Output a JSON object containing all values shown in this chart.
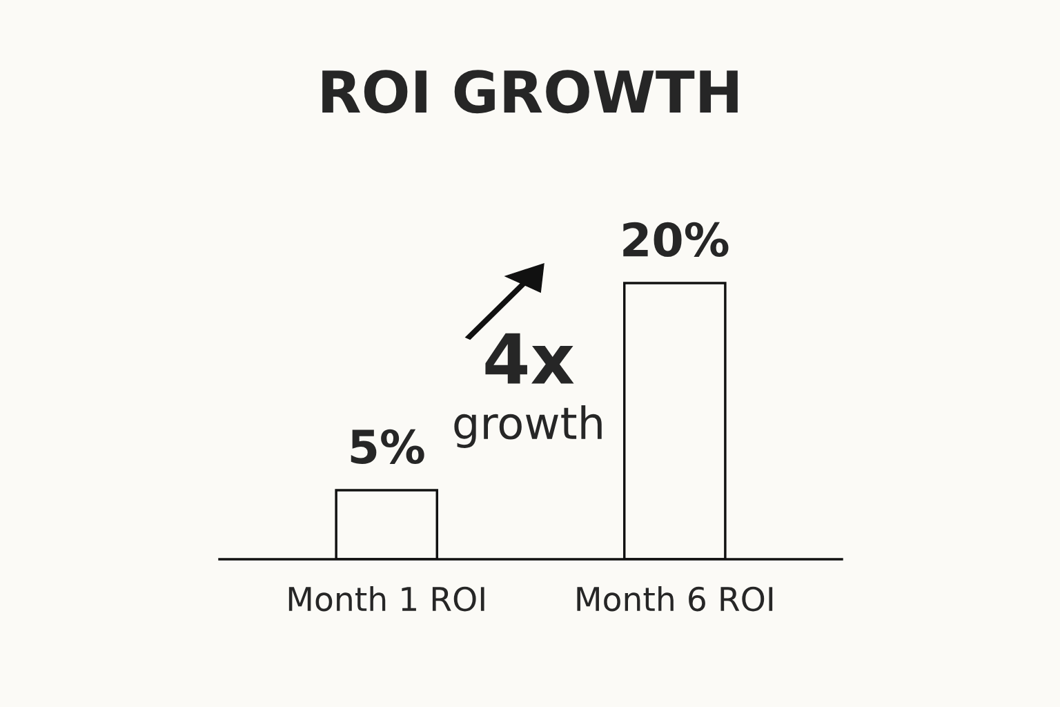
{
  "chart_data": {
    "type": "bar",
    "title": "ROI GROWTH",
    "categories": [
      "Month 1 ROI",
      "Month 6 ROI"
    ],
    "values": [
      5,
      20
    ],
    "value_labels": [
      "5%",
      "20%"
    ],
    "color": "#fbfaf6",
    "annotations": [
      "4x",
      "growth"
    ],
    "tick_labels": "x",
    "grid": false,
    "legend": false
  }
}
